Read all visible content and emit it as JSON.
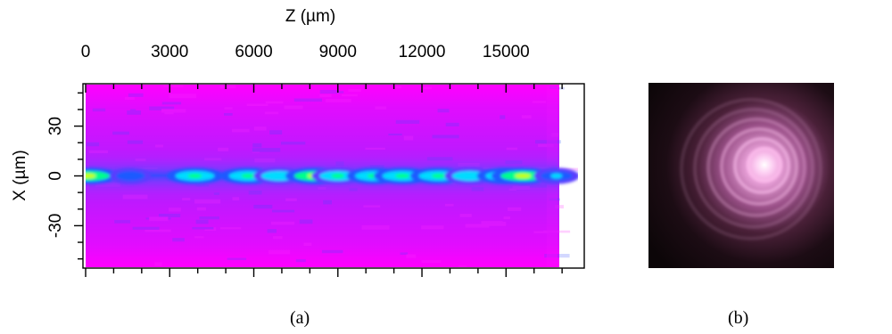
{
  "chart_data": {
    "type": "heatmap",
    "panel_label": "(a)",
    "xlabel": "Z (µm)",
    "ylabel": "X (µm)",
    "x_tick_labels": [
      "0",
      "3000",
      "6000",
      "9000",
      "12000",
      "15000"
    ],
    "x_tick_values": [
      0,
      3000,
      6000,
      9000,
      12000,
      15000
    ],
    "y_tick_labels": [
      "30",
      "0",
      "-30"
    ],
    "y_tick_values": [
      30,
      0,
      -30
    ],
    "xlim": [
      0,
      17000
    ],
    "ylim": [
      -55,
      55
    ],
    "data_extent_z": 16900,
    "colormap": [
      "#ff00ff",
      "#b400ff",
      "#5a3cff",
      "#1e5aff",
      "#00dcff",
      "#00ff8c",
      "#c8ff00"
    ],
    "grid": false,
    "hotspots": [
      {
        "z": 80,
        "x": 0,
        "intensity": 0.95
      },
      {
        "z": 1600,
        "x": 0,
        "intensity": 0.5
      },
      {
        "z": 3900,
        "x": 0,
        "intensity": 0.82
      },
      {
        "z": 5800,
        "x": 0,
        "intensity": 0.8
      },
      {
        "z": 6900,
        "x": 0,
        "intensity": 0.72
      },
      {
        "z": 8200,
        "x": 0,
        "intensity": 0.92
      },
      {
        "z": 9000,
        "x": 0,
        "intensity": 0.75
      },
      {
        "z": 10300,
        "x": 0,
        "intensity": 0.8
      },
      {
        "z": 11300,
        "x": 0,
        "intensity": 0.85
      },
      {
        "z": 12600,
        "x": 0,
        "intensity": 0.85
      },
      {
        "z": 13700,
        "x": 0,
        "intensity": 0.7
      },
      {
        "z": 15000,
        "x": 0,
        "intensity": 0.88
      },
      {
        "z": 15600,
        "x": 0,
        "intensity": 0.98
      },
      {
        "z": 16800,
        "x": 0,
        "intensity": 0.6
      }
    ]
  },
  "photo": {
    "panel_label": "(b)",
    "description_icon": "concentric-ring-beam-photo-icon",
    "ring_color": "#ffc3f0",
    "background_color": "#140810"
  }
}
